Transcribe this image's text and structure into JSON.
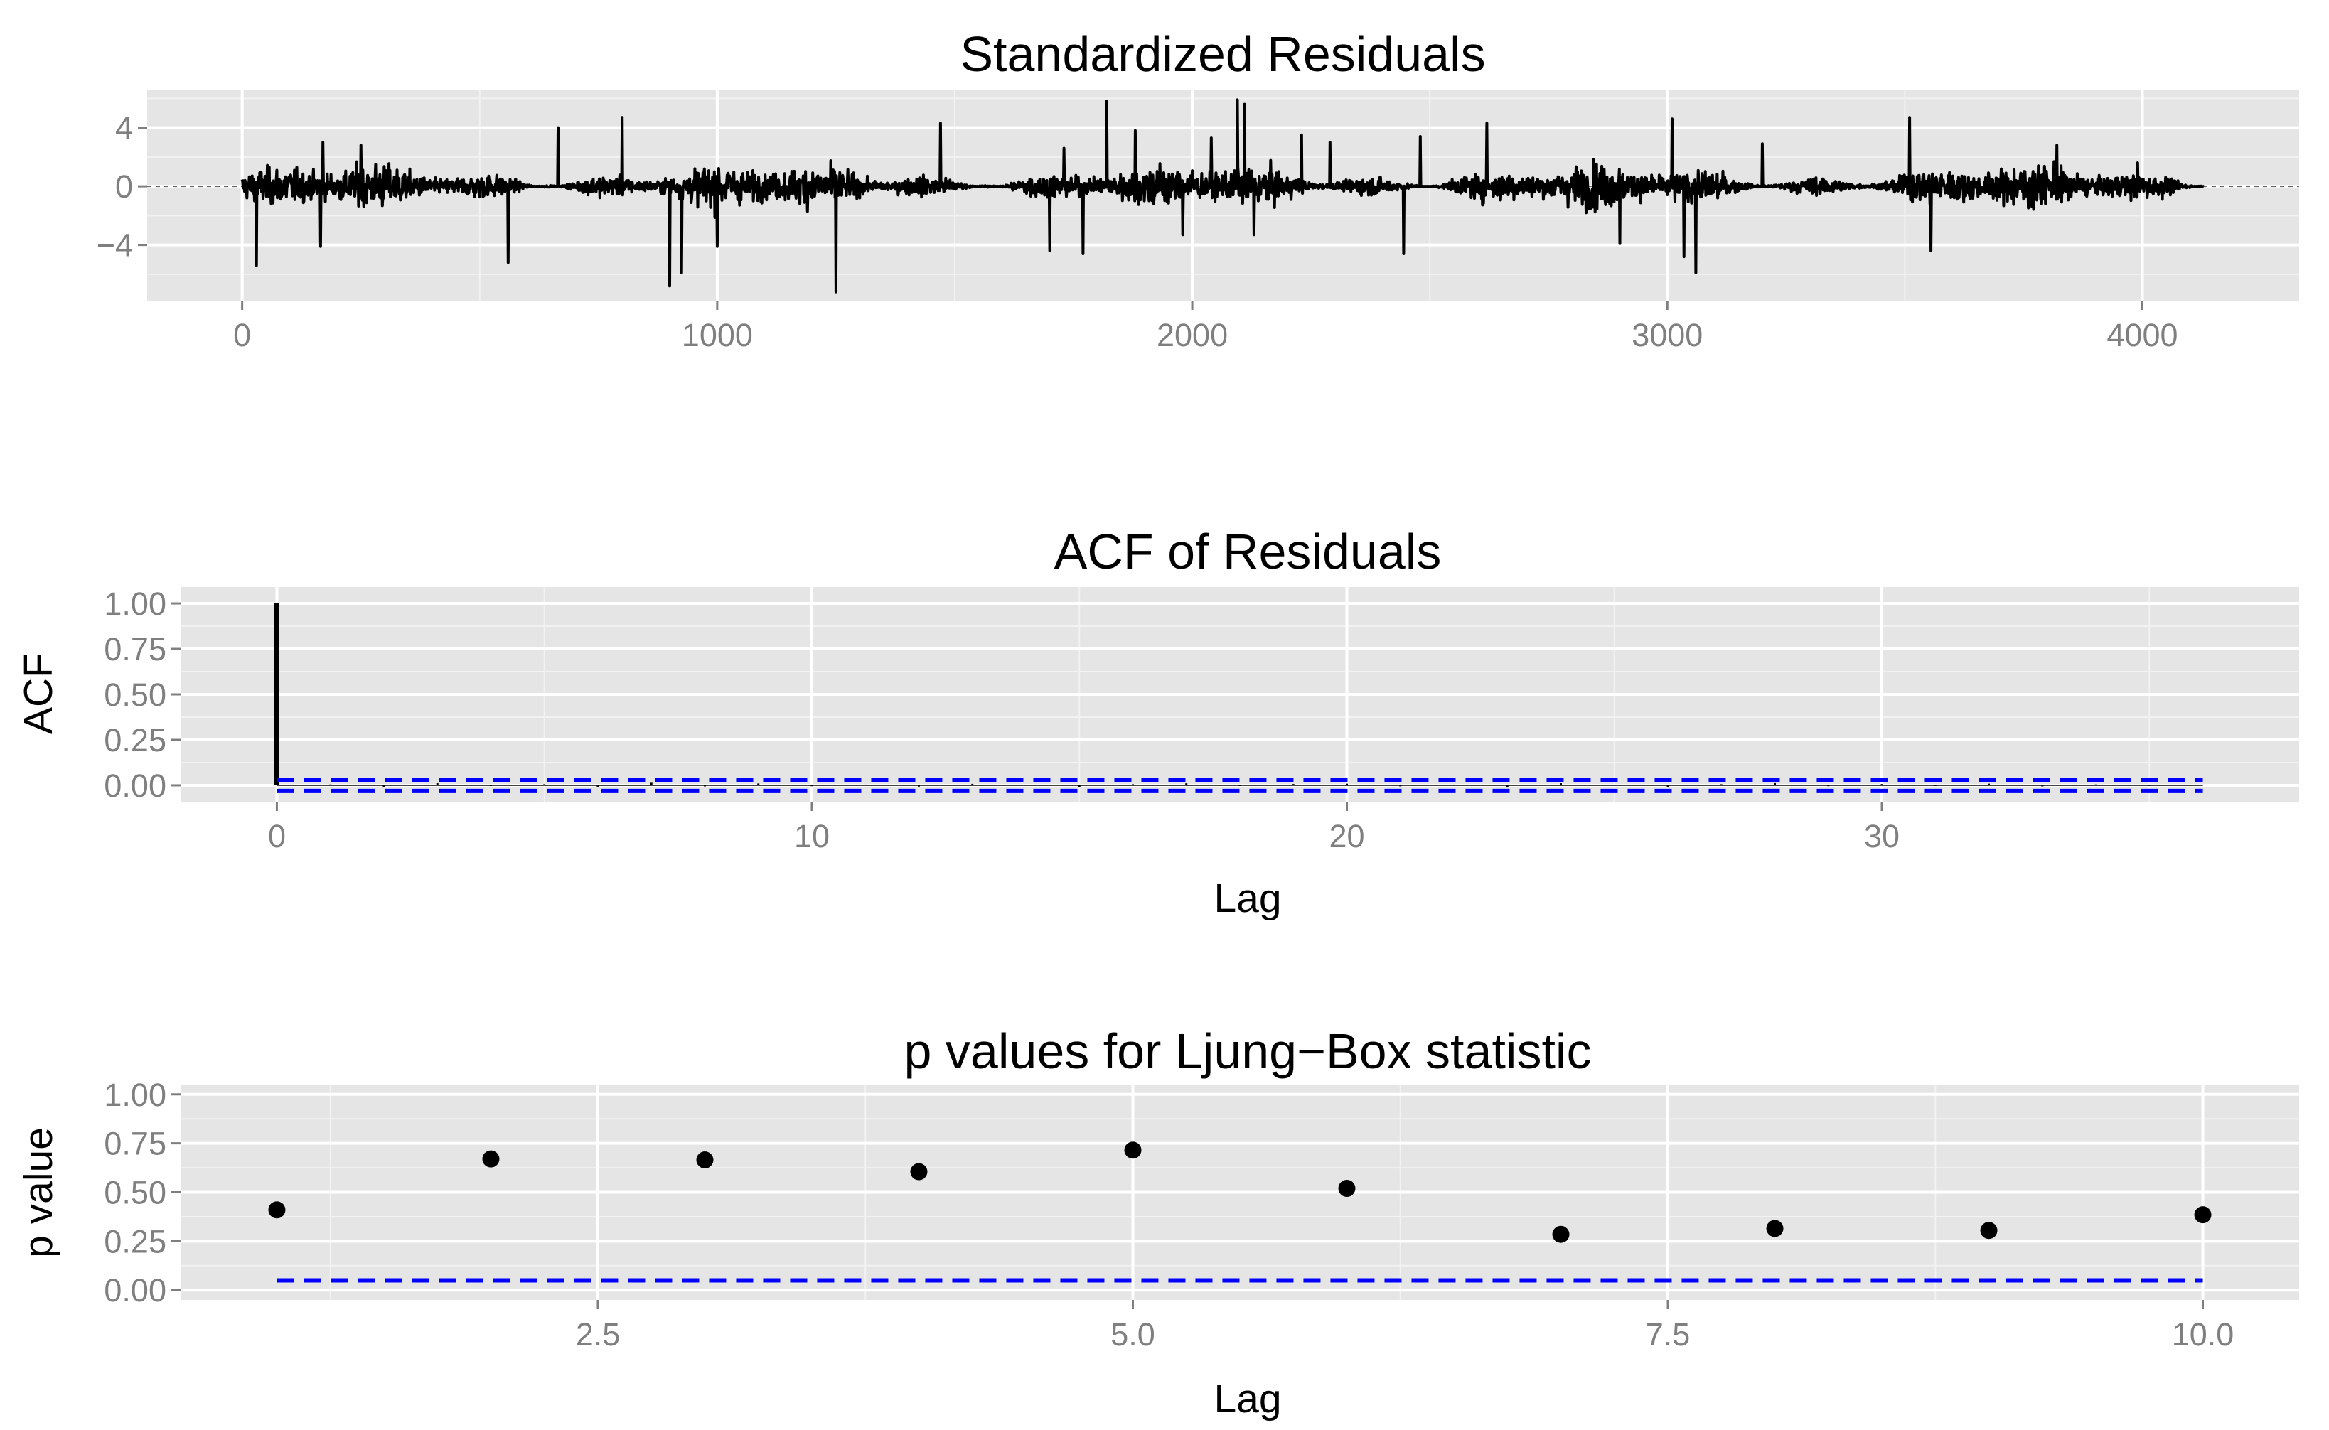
{
  "colors": {
    "panel_bg": "#e5e5e5",
    "grid_major": "#ffffff",
    "grid_minor": "#f2f2f2",
    "data": "#000000",
    "reference": "#0000ff",
    "tick_text": "#7f7f7f"
  },
  "chart_data": [
    {
      "id": "residuals",
      "type": "line",
      "title": "Standardized Residuals",
      "xlabel": "",
      "ylabel": "",
      "xlim": [
        -200,
        4330
      ],
      "ylim": [
        -7.8,
        6.6
      ],
      "xticks": [
        0,
        1000,
        2000,
        3000,
        4000
      ],
      "xtick_labels": [
        "0",
        "1000",
        "2000",
        "3000",
        "4000"
      ],
      "yticks": [
        -4,
        0,
        4
      ],
      "ytick_labels": [
        "−4",
        "0",
        "4"
      ],
      "n": 4130,
      "zero_line": 0,
      "spikes": [
        {
          "x": 30,
          "y": -5.4
        },
        {
          "x": 170,
          "y": 3.0
        },
        {
          "x": 165,
          "y": -4.1
        },
        {
          "x": 250,
          "y": 2.8
        },
        {
          "x": 560,
          "y": -5.2
        },
        {
          "x": 665,
          "y": 4.0
        },
        {
          "x": 800,
          "y": 4.7
        },
        {
          "x": 900,
          "y": -6.8
        },
        {
          "x": 925,
          "y": -5.9
        },
        {
          "x": 1000,
          "y": -4.1
        },
        {
          "x": 1250,
          "y": -7.2
        },
        {
          "x": 1470,
          "y": 4.3
        },
        {
          "x": 1700,
          "y": -4.4
        },
        {
          "x": 1730,
          "y": 2.6
        },
        {
          "x": 1770,
          "y": -4.6
        },
        {
          "x": 1820,
          "y": 5.8
        },
        {
          "x": 1880,
          "y": 3.8
        },
        {
          "x": 1980,
          "y": -3.3
        },
        {
          "x": 2040,
          "y": 3.3
        },
        {
          "x": 2095,
          "y": 5.9
        },
        {
          "x": 2110,
          "y": 5.6
        },
        {
          "x": 2130,
          "y": -3.3
        },
        {
          "x": 2230,
          "y": 3.5
        },
        {
          "x": 2290,
          "y": 3.0
        },
        {
          "x": 2445,
          "y": -4.6
        },
        {
          "x": 2480,
          "y": 3.4
        },
        {
          "x": 2620,
          "y": 4.3
        },
        {
          "x": 2900,
          "y": -3.9
        },
        {
          "x": 3010,
          "y": 4.6
        },
        {
          "x": 3035,
          "y": -4.8
        },
        {
          "x": 3060,
          "y": -5.9
        },
        {
          "x": 3200,
          "y": 2.9
        },
        {
          "x": 3510,
          "y": 4.7
        },
        {
          "x": 3555,
          "y": -4.4
        },
        {
          "x": 3820,
          "y": 2.8
        },
        {
          "x": 3990,
          "y": 1.6
        }
      ]
    },
    {
      "id": "acf",
      "type": "bar",
      "title": "ACF of Residuals",
      "xlabel": "Lag",
      "ylabel": "ACF",
      "xlim": [
        -1.8,
        37.8
      ],
      "ylim": [
        -0.09,
        1.09
      ],
      "xticks": [
        0,
        10,
        20,
        30
      ],
      "xtick_labels": [
        "0",
        "10",
        "20",
        "30"
      ],
      "yticks": [
        0,
        0.25,
        0.5,
        0.75,
        1.0
      ],
      "ytick_labels": [
        "0.00",
        "0.25",
        "0.50",
        "0.75",
        "1.00"
      ],
      "lags": [
        0,
        1,
        2,
        3,
        4,
        5,
        6,
        7,
        8,
        9,
        10,
        11,
        12,
        13,
        14,
        15,
        16,
        17,
        18,
        19,
        20,
        21,
        22,
        23,
        24,
        25,
        26,
        27,
        28,
        29,
        30,
        31,
        32,
        33,
        34,
        35,
        36
      ],
      "values": [
        1.0,
        0.005,
        -0.008,
        0.012,
        -0.004,
        0.006,
        -0.01,
        0.018,
        -0.006,
        0.01,
        -0.005,
        0.004,
        -0.007,
        0.008,
        0.003,
        -0.009,
        0.006,
        0.011,
        -0.004,
        0.007,
        0.009,
        -0.006,
        0.004,
        -0.012,
        0.013,
        0.003,
        -0.008,
        0.006,
        0.016,
        -0.005,
        0.007,
        -0.004,
        0.009,
        -0.006,
        0.005,
        -0.003,
        0.004
      ],
      "conf_bounds": [
        0.031,
        -0.031
      ]
    },
    {
      "id": "ljung_box",
      "type": "scatter",
      "title": "p values for Ljung−Box statistic",
      "xlabel": "Lag",
      "ylabel": "p value",
      "xlim": [
        0.55,
        10.45
      ],
      "ylim": [
        -0.05,
        1.05
      ],
      "xticks": [
        2.5,
        5.0,
        7.5,
        10.0
      ],
      "xtick_labels": [
        "2.5",
        "5.0",
        "7.5",
        "10.0"
      ],
      "yticks": [
        0,
        0.25,
        0.5,
        0.75,
        1.0
      ],
      "ytick_labels": [
        "0.00",
        "0.25",
        "0.50",
        "0.75",
        "1.00"
      ],
      "x": [
        1,
        2,
        3,
        4,
        5,
        6,
        7,
        8,
        9,
        10
      ],
      "y": [
        0.41,
        0.67,
        0.665,
        0.605,
        0.715,
        0.52,
        0.285,
        0.315,
        0.305,
        0.385
      ],
      "threshold": 0.05
    }
  ]
}
